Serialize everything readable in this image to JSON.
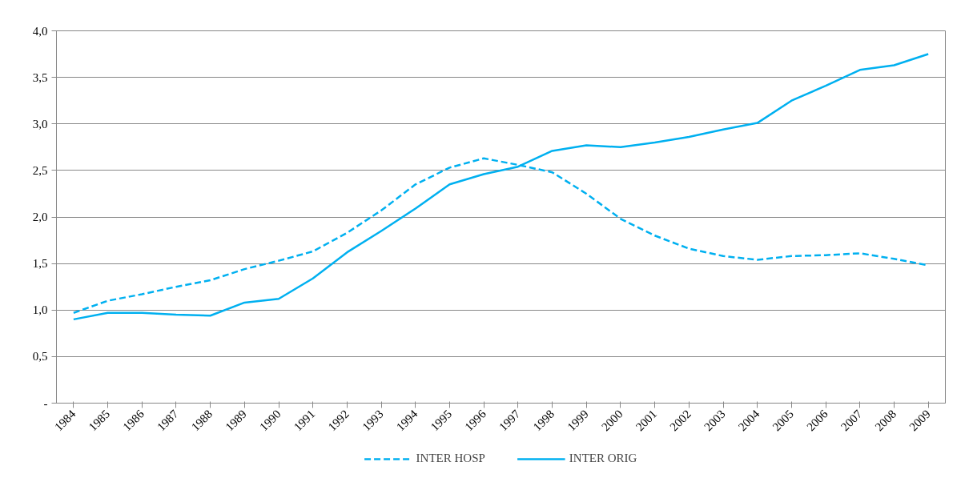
{
  "chart_data": {
    "type": "line",
    "categories": [
      "1984",
      "1985",
      "1986",
      "1987",
      "1988",
      "1989",
      "1990",
      "1991",
      "1992",
      "1993",
      "1994",
      "1995",
      "1996",
      "1997",
      "1998",
      "1999",
      "2000",
      "2001",
      "2002",
      "2003",
      "2004",
      "2005",
      "2006",
      "2007",
      "2008",
      "2009"
    ],
    "series": [
      {
        "name": "INTER HOSP",
        "color": "#00b0f0",
        "line_style": "dashed",
        "values": [
          0.97,
          1.1,
          1.17,
          1.25,
          1.32,
          1.44,
          1.53,
          1.63,
          1.83,
          2.07,
          2.35,
          2.53,
          2.63,
          2.56,
          2.48,
          2.25,
          1.98,
          1.8,
          1.66,
          1.58,
          1.54,
          1.58,
          1.59,
          1.61,
          1.55,
          1.48
        ]
      },
      {
        "name": "INTER ORIG",
        "color": "#00b0f0",
        "line_style": "solid",
        "values": [
          0.9,
          0.97,
          0.97,
          0.95,
          0.94,
          1.08,
          1.12,
          1.34,
          1.62,
          1.85,
          2.09,
          2.35,
          2.46,
          2.54,
          2.71,
          2.77,
          2.75,
          2.8,
          2.86,
          2.94,
          3.01,
          3.25,
          3.41,
          3.58,
          3.63,
          3.75
        ]
      }
    ],
    "ylim": [
      0,
      4
    ],
    "yticks": [
      {
        "value": 0,
        "label": "-"
      },
      {
        "value": 0.5,
        "label": "0,5"
      },
      {
        "value": 1,
        "label": "1,0"
      },
      {
        "value": 1.5,
        "label": "1,5"
      },
      {
        "value": 2,
        "label": "2,0"
      },
      {
        "value": 2.5,
        "label": "2,5"
      },
      {
        "value": 3,
        "label": "3,0"
      },
      {
        "value": 3.5,
        "label": "3,5"
      },
      {
        "value": 4,
        "label": "4,0"
      }
    ],
    "grid": "y",
    "legend": "bottom",
    "marker": "none"
  }
}
